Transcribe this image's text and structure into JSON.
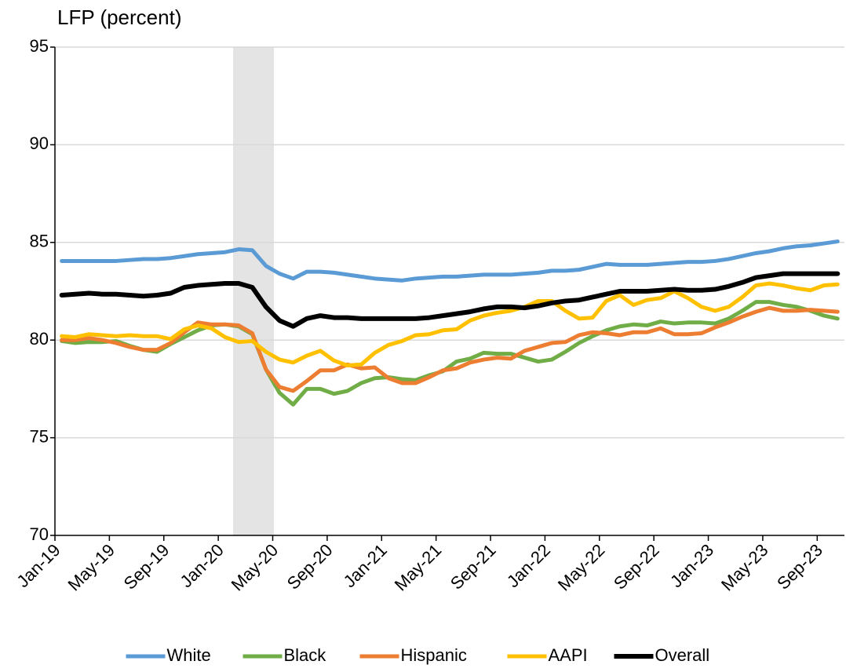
{
  "chart_data": {
    "type": "line",
    "ylabel": "LFP (percent)",
    "categories": [
      "Jan-19",
      null,
      null,
      null,
      "May-19",
      null,
      null,
      null,
      "Sep-19",
      null,
      null,
      null,
      "Jan-20",
      null,
      null,
      null,
      "May-20",
      null,
      null,
      null,
      "Sep-20",
      null,
      null,
      null,
      "Jan-21",
      null,
      null,
      null,
      "May-21",
      null,
      null,
      null,
      "Sep-21",
      null,
      null,
      null,
      "Jan-22",
      null,
      null,
      null,
      "May-22",
      null,
      null,
      null,
      "Sep-22",
      null,
      null,
      null,
      "Jan-23",
      null,
      null,
      null,
      "May-23",
      null,
      null,
      null,
      "Sep-23",
      null
    ],
    "series": [
      {
        "name": "White",
        "color": "#5b9bd5",
        "width": 5,
        "values": [
          84.05,
          84.05,
          84.05,
          84.05,
          84.05,
          84.1,
          84.15,
          84.15,
          84.2,
          84.3,
          84.4,
          84.45,
          84.5,
          84.65,
          84.6,
          83.8,
          83.4,
          83.15,
          83.5,
          83.5,
          83.45,
          83.35,
          83.25,
          83.15,
          83.1,
          83.05,
          83.15,
          83.2,
          83.25,
          83.25,
          83.3,
          83.35,
          83.35,
          83.35,
          83.4,
          83.45,
          83.55,
          83.55,
          83.6,
          83.75,
          83.9,
          83.85,
          83.85,
          83.85,
          83.9,
          83.95,
          84.0,
          84.0,
          84.05,
          84.15,
          84.3,
          84.45,
          84.55,
          84.7,
          84.8,
          84.85,
          84.95,
          85.05
        ]
      },
      {
        "name": "Black",
        "color": "#70ad47",
        "width": 5,
        "values": [
          79.95,
          79.85,
          79.9,
          79.9,
          79.95,
          79.7,
          79.5,
          79.4,
          79.8,
          80.15,
          80.5,
          80.75,
          80.8,
          80.7,
          80.3,
          78.5,
          77.3,
          76.7,
          77.5,
          77.5,
          77.25,
          77.4,
          77.8,
          78.05,
          78.1,
          78.0,
          77.95,
          78.2,
          78.4,
          78.9,
          79.05,
          79.35,
          79.3,
          79.3,
          79.1,
          78.9,
          79.0,
          79.4,
          79.85,
          80.2,
          80.5,
          80.7,
          80.8,
          80.75,
          80.95,
          80.85,
          80.9,
          80.9,
          80.85,
          81.1,
          81.5,
          81.95,
          81.95,
          81.8,
          81.7,
          81.5,
          81.25,
          81.1
        ]
      },
      {
        "name": "Hispanic",
        "color": "#ed7d31",
        "width": 5,
        "values": [
          80.0,
          80.0,
          80.1,
          80.0,
          79.85,
          79.65,
          79.5,
          79.5,
          79.85,
          80.4,
          80.9,
          80.8,
          80.8,
          80.75,
          80.35,
          78.5,
          77.6,
          77.4,
          77.9,
          78.45,
          78.45,
          78.75,
          78.55,
          78.6,
          78.05,
          77.8,
          77.8,
          78.1,
          78.45,
          78.55,
          78.85,
          79.0,
          79.1,
          79.05,
          79.45,
          79.65,
          79.85,
          79.9,
          80.25,
          80.4,
          80.35,
          80.25,
          80.4,
          80.4,
          80.6,
          80.3,
          80.3,
          80.35,
          80.65,
          80.9,
          81.2,
          81.45,
          81.65,
          81.5,
          81.5,
          81.55,
          81.5,
          81.45
        ]
      },
      {
        "name": "AAPI",
        "color": "#ffc000",
        "width": 5,
        "values": [
          80.2,
          80.15,
          80.3,
          80.25,
          80.2,
          80.25,
          80.2,
          80.2,
          80.05,
          80.55,
          80.75,
          80.6,
          80.15,
          79.9,
          79.95,
          79.4,
          79.0,
          78.85,
          79.2,
          79.45,
          78.95,
          78.7,
          78.75,
          79.35,
          79.75,
          79.95,
          80.25,
          80.3,
          80.5,
          80.55,
          81.0,
          81.25,
          81.4,
          81.5,
          81.7,
          82.0,
          82.0,
          81.5,
          81.1,
          81.15,
          82.0,
          82.3,
          81.8,
          82.05,
          82.15,
          82.5,
          82.15,
          81.7,
          81.5,
          81.7,
          82.2,
          82.8,
          82.9,
          82.8,
          82.65,
          82.55,
          82.8,
          82.85
        ]
      },
      {
        "name": "Overall",
        "color": "#000000",
        "width": 6,
        "values": [
          82.3,
          82.35,
          82.4,
          82.35,
          82.35,
          82.3,
          82.25,
          82.3,
          82.4,
          82.7,
          82.8,
          82.85,
          82.9,
          82.9,
          82.7,
          81.7,
          81.0,
          80.7,
          81.1,
          81.25,
          81.15,
          81.15,
          81.1,
          81.1,
          81.1,
          81.1,
          81.1,
          81.15,
          81.25,
          81.35,
          81.45,
          81.6,
          81.7,
          81.7,
          81.65,
          81.75,
          81.9,
          82.0,
          82.05,
          82.2,
          82.35,
          82.5,
          82.5,
          82.5,
          82.55,
          82.6,
          82.55,
          82.55,
          82.6,
          82.75,
          82.95,
          83.2,
          83.3,
          83.4,
          83.4,
          83.4,
          83.4,
          83.4
        ]
      }
    ],
    "ylim": [
      70,
      95
    ],
    "yticks": [
      70,
      75,
      80,
      85,
      90,
      95
    ],
    "grid": true,
    "legend": "bottom"
  }
}
